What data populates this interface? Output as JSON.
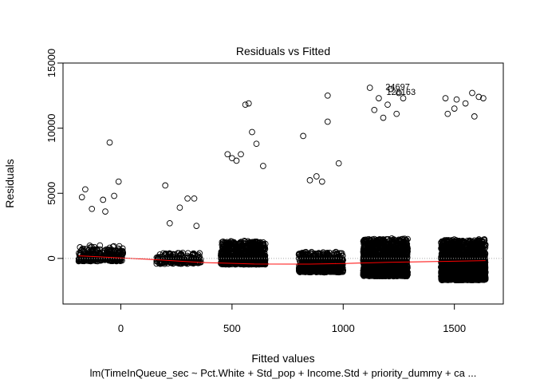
{
  "chart_data": {
    "type": "scatter",
    "title": "Residuals vs Fitted",
    "xlabel": "Fitted values",
    "ylabel": "Residuals",
    "subtitle": "lm(TimeInQueue_sec ~ Pct.White + Std_pop + Income.Std + priority_dummy + ca ...",
    "xlim": [
      -260,
      1720
    ],
    "ylim": [
      -3500,
      15000
    ],
    "x_ticks": [
      0,
      500,
      1000,
      1500
    ],
    "x_tick_labels": [
      "0",
      "500",
      "1000",
      "1500"
    ],
    "y_ticks": [
      0,
      5000,
      10000,
      15000
    ],
    "y_tick_labels": [
      "0",
      "5000",
      "10000",
      "15000"
    ],
    "reference_line": {
      "y": 0,
      "style": "dotted",
      "color": "#aaaaaa"
    },
    "point_color": "#000000",
    "smooth_color": "#ff0000",
    "clusters": [
      {
        "x_range": [
          -190,
          10
        ],
        "base": -150,
        "spread": 1100,
        "n": 300
      },
      {
        "x_range": [
          160,
          360
        ],
        "base": -350,
        "spread": 800,
        "n": 200
      },
      {
        "x_range": [
          450,
          650
        ],
        "base": -400,
        "spread": 1700,
        "n": 1000
      },
      {
        "x_range": [
          800,
          1000
        ],
        "base": -1000,
        "spread": 1500,
        "n": 700
      },
      {
        "x_range": [
          1090,
          1290
        ],
        "base": -1300,
        "spread": 2800,
        "n": 1900
      },
      {
        "x_range": [
          1440,
          1640
        ],
        "base": -1600,
        "spread": 3000,
        "n": 2300
      }
    ],
    "outliers": [
      {
        "x": -50,
        "y": 8900
      },
      {
        "x": -10,
        "y": 5900
      },
      {
        "x": -160,
        "y": 5300
      },
      {
        "x": -175,
        "y": 4700
      },
      {
        "x": -80,
        "y": 4500
      },
      {
        "x": -30,
        "y": 4800
      },
      {
        "x": -130,
        "y": 3800
      },
      {
        "x": -70,
        "y": 3600
      },
      {
        "x": 200,
        "y": 5600
      },
      {
        "x": 300,
        "y": 4600
      },
      {
        "x": 330,
        "y": 4600
      },
      {
        "x": 265,
        "y": 3900
      },
      {
        "x": 220,
        "y": 2700
      },
      {
        "x": 340,
        "y": 2500
      },
      {
        "x": 560,
        "y": 11800
      },
      {
        "x": 575,
        "y": 11900
      },
      {
        "x": 590,
        "y": 9700
      },
      {
        "x": 610,
        "y": 8800
      },
      {
        "x": 480,
        "y": 8000
      },
      {
        "x": 540,
        "y": 8000
      },
      {
        "x": 500,
        "y": 7700
      },
      {
        "x": 640,
        "y": 7100
      },
      {
        "x": 520,
        "y": 7500
      },
      {
        "x": 930,
        "y": 12500
      },
      {
        "x": 930,
        "y": 10500
      },
      {
        "x": 820,
        "y": 9400
      },
      {
        "x": 980,
        "y": 7300
      },
      {
        "x": 880,
        "y": 6300
      },
      {
        "x": 905,
        "y": 5900
      },
      {
        "x": 850,
        "y": 6000
      },
      {
        "x": 1120,
        "y": 13100
      },
      {
        "x": 1215,
        "y": 13000
      },
      {
        "x": 1250,
        "y": 12700
      },
      {
        "x": 1160,
        "y": 12300
      },
      {
        "x": 1200,
        "y": 11800
      },
      {
        "x": 1270,
        "y": 12300
      },
      {
        "x": 1140,
        "y": 11400
      },
      {
        "x": 1240,
        "y": 11100
      },
      {
        "x": 1180,
        "y": 10800
      },
      {
        "x": 1460,
        "y": 12300
      },
      {
        "x": 1510,
        "y": 12200
      },
      {
        "x": 1580,
        "y": 12700
      },
      {
        "x": 1610,
        "y": 12400
      },
      {
        "x": 1550,
        "y": 11900
      },
      {
        "x": 1500,
        "y": 11500
      },
      {
        "x": 1630,
        "y": 12300
      },
      {
        "x": 1470,
        "y": 11100
      },
      {
        "x": 1590,
        "y": 10900
      }
    ],
    "labeled_points": [
      {
        "label": "24697",
        "x": 1245,
        "y": 13200
      },
      {
        "label": "128163",
        "x": 1260,
        "y": 12800
      }
    ],
    "smooth_curve": [
      {
        "x": -190,
        "y": 200
      },
      {
        "x": 0,
        "y": 40
      },
      {
        "x": 160,
        "y": -100
      },
      {
        "x": 350,
        "y": -300
      },
      {
        "x": 600,
        "y": -430
      },
      {
        "x": 850,
        "y": -440
      },
      {
        "x": 1000,
        "y": -390
      },
      {
        "x": 1200,
        "y": -300
      },
      {
        "x": 1450,
        "y": -230
      },
      {
        "x": 1640,
        "y": -170
      }
    ]
  }
}
